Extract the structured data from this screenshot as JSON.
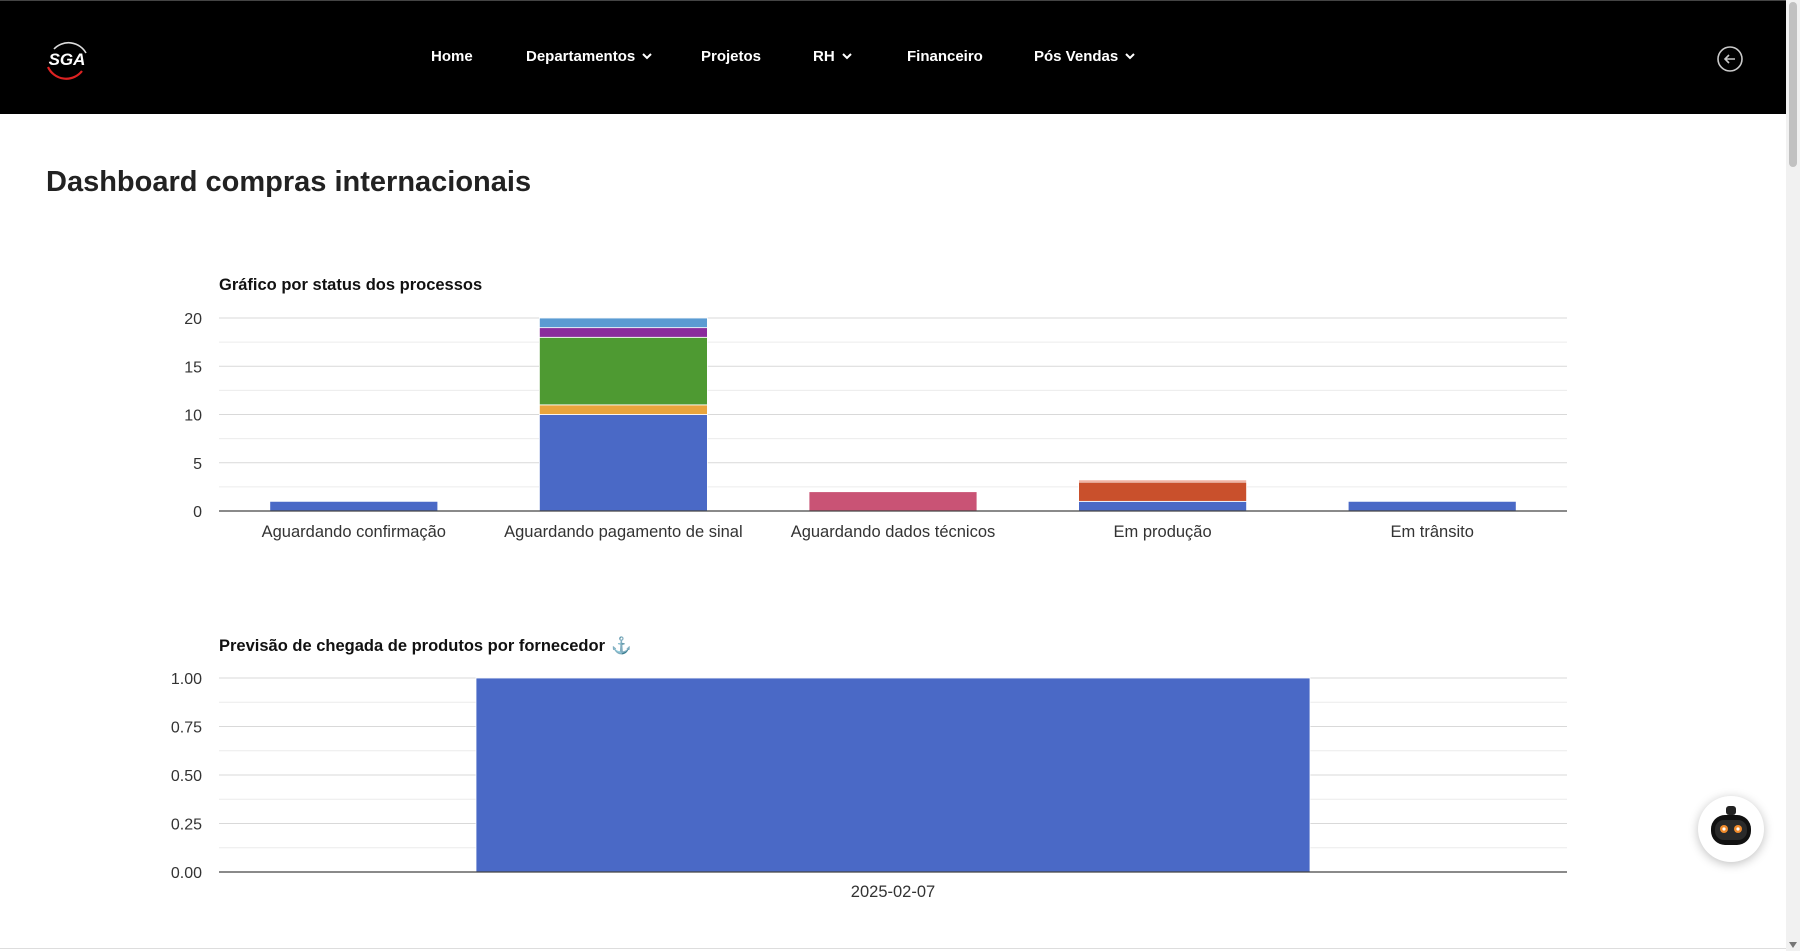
{
  "header": {
    "logo_text": "SGA",
    "nav": [
      {
        "label": "Home",
        "dropdown": false
      },
      {
        "label": "Departamentos",
        "dropdown": true
      },
      {
        "label": "Projetos",
        "dropdown": false
      },
      {
        "label": "RH",
        "dropdown": true
      },
      {
        "label": "Financeiro",
        "dropdown": false
      },
      {
        "label": "Pós Vendas",
        "dropdown": true
      }
    ],
    "logout_icon": "arrow-left-circle-icon"
  },
  "page": {
    "title": "Dashboard compras internacionais"
  },
  "colors": {
    "blue": "#4a69c6",
    "orange": "#e8a43c",
    "green": "#4e9a32",
    "purple": "#8a2c9c",
    "lightblue": "#5b9bd2",
    "pink": "#c95375",
    "red": "#c9502c",
    "salmon": "#e98b72"
  },
  "chart_data": [
    {
      "type": "bar",
      "stacked": true,
      "title": "Gráfico por status dos processos",
      "categories": [
        "Aguardando confirmação",
        "Aguardando pagamento de sinal",
        "Aguardando dados técnicos",
        "Em produção",
        "Em trânsito"
      ],
      "yticks": [
        "0",
        "5",
        "10",
        "15",
        "20"
      ],
      "ylim": [
        0,
        20
      ],
      "grid": true,
      "legend": "none",
      "series": [
        {
          "color": "#4a69c6",
          "values": [
            1,
            10,
            0,
            1,
            1
          ]
        },
        {
          "color": "#e8a43c",
          "values": [
            0,
            1,
            0,
            0,
            0
          ]
        },
        {
          "color": "#4e9a32",
          "values": [
            0,
            7,
            0,
            0,
            0
          ]
        },
        {
          "color": "#8a2c9c",
          "values": [
            0,
            1,
            0,
            0,
            0
          ]
        },
        {
          "color": "#5b9bd2",
          "values": [
            0,
            1,
            0,
            0,
            0
          ]
        },
        {
          "color": "#c95375",
          "values": [
            0,
            0,
            2,
            0,
            0
          ]
        },
        {
          "color": "#c9502c",
          "values": [
            0,
            0,
            0,
            2,
            0
          ]
        },
        {
          "color": "#e98b72",
          "values": [
            0,
            0,
            0,
            0.2,
            0
          ]
        }
      ]
    },
    {
      "type": "bar",
      "title": "Previsão de chegada de produtos por fornecedor",
      "title_icon": "⚓",
      "categories": [
        "2025-02-07"
      ],
      "yticks": [
        "0.00",
        "0.25",
        "0.50",
        "0.75",
        "1.00"
      ],
      "ylim": [
        0,
        1
      ],
      "grid": true,
      "legend": "none",
      "series": [
        {
          "color": "#4a69c6",
          "values": [
            1
          ]
        }
      ]
    }
  ]
}
